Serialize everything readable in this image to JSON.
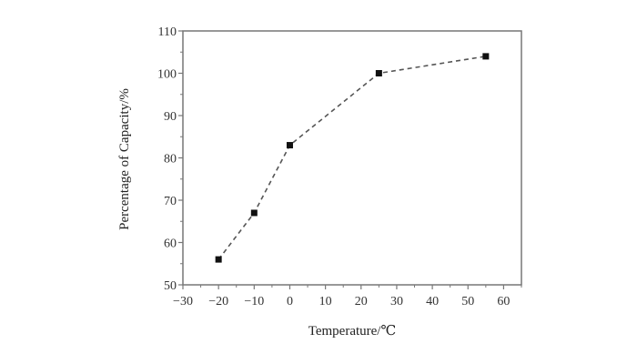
{
  "chart_data": {
    "type": "line",
    "title": "",
    "xlabel": "Temperature/℃",
    "ylabel": "Percentage of Capacity/%",
    "x": [
      -20,
      -10,
      0,
      25,
      55
    ],
    "series": [
      {
        "name": "Capacity",
        "values": [
          56,
          67,
          83,
          100,
          104
        ],
        "line_style": "dashed",
        "marker": "square",
        "color": "#111111"
      }
    ],
    "xlim": [
      -30,
      65
    ],
    "ylim": [
      50,
      110
    ],
    "xticks": [
      -30,
      -20,
      -10,
      0,
      10,
      20,
      30,
      40,
      50,
      60
    ],
    "yticks": [
      50,
      60,
      70,
      80,
      90,
      100,
      110
    ],
    "grid": false,
    "legend": null
  }
}
